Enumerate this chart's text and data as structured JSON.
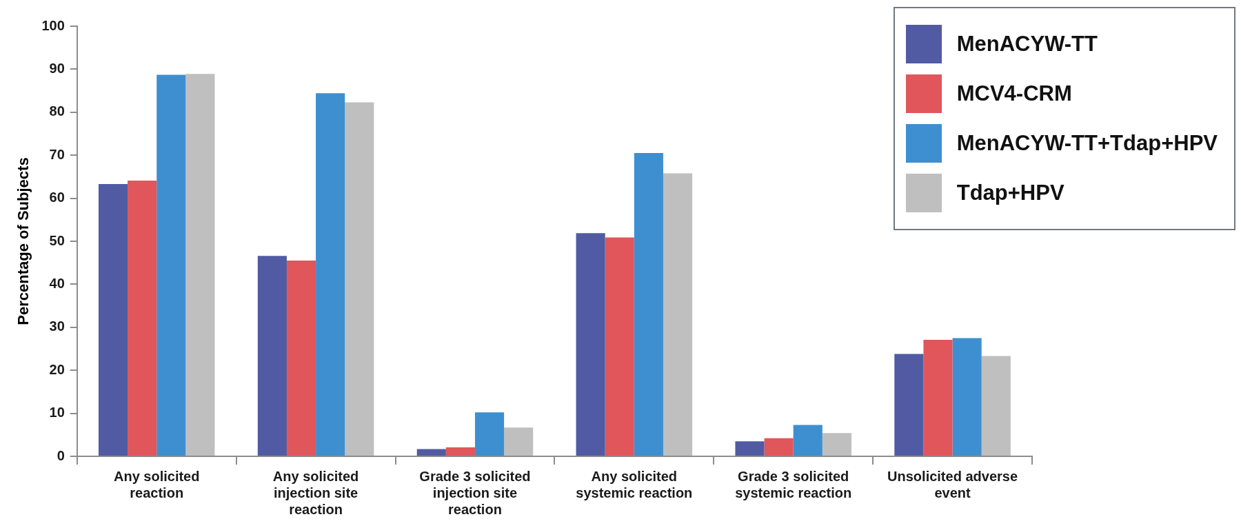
{
  "chart_data": {
    "type": "bar",
    "ylabel": "Percentage of Subjects",
    "categories": [
      "Any solicited reaction",
      "Any solicited injection site reaction",
      "Grade 3 solicited injection site reaction",
      "Any solicited systemic reaction",
      "Grade 3 solicited systemic reaction",
      "Unsolicited adverse event"
    ],
    "series": [
      {
        "name": "MenACYW-TT",
        "color": "#515ba3",
        "values": [
          63.3,
          46.6,
          1.7,
          51.9,
          3.5,
          23.8
        ]
      },
      {
        "name": "MCV4-CRM",
        "color": "#e0565b",
        "values": [
          64.1,
          45.5,
          2.1,
          50.9,
          4.2,
          27.1
        ]
      },
      {
        "name": "MenACYW-TT+Tdap+HPV",
        "color": "#3e8fd0",
        "values": [
          88.7,
          84.4,
          10.2,
          70.5,
          7.3,
          27.5
        ]
      },
      {
        "name": "Tdap+HPV",
        "color": "#bfbfbf",
        "values": [
          88.9,
          82.3,
          6.7,
          65.8,
          5.4,
          23.3
        ]
      }
    ],
    "ylim": [
      0,
      100
    ],
    "yticks": [
      0,
      10,
      20,
      30,
      40,
      50,
      60,
      70,
      80,
      90,
      100
    ],
    "grid": false,
    "legend": "top right"
  }
}
